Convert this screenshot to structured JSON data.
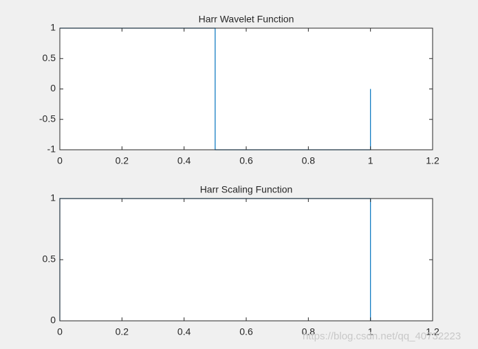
{
  "chart_data": [
    {
      "type": "line",
      "title": "Harr Wavelet Function",
      "series": [
        {
          "color": "#0072bd",
          "x": [
            0,
            0.5,
            0.5,
            1,
            1
          ],
          "values": [
            1,
            1,
            -1,
            -1,
            0
          ]
        }
      ],
      "xlim": [
        0,
        1.2
      ],
      "xticks": [
        0,
        0.2,
        0.4,
        0.6,
        0.8,
        1,
        1.2
      ],
      "ylim": [
        -1,
        1
      ],
      "yticks": [
        -1,
        -0.5,
        0,
        0.5,
        1
      ]
    },
    {
      "type": "line",
      "title": "Harr Scaling Function",
      "series": [
        {
          "color": "#0072bd",
          "x": [
            0,
            0,
            1,
            1
          ],
          "values": [
            0,
            1,
            1,
            0
          ]
        }
      ],
      "xlim": [
        0,
        1.2
      ],
      "xticks": [
        0,
        0.2,
        0.4,
        0.6,
        0.8,
        1,
        1.2
      ],
      "ylim": [
        0,
        1
      ],
      "yticks": [
        0,
        0.5,
        1
      ]
    }
  ],
  "watermark": "https://blog.csdn.net/qq_40732223"
}
